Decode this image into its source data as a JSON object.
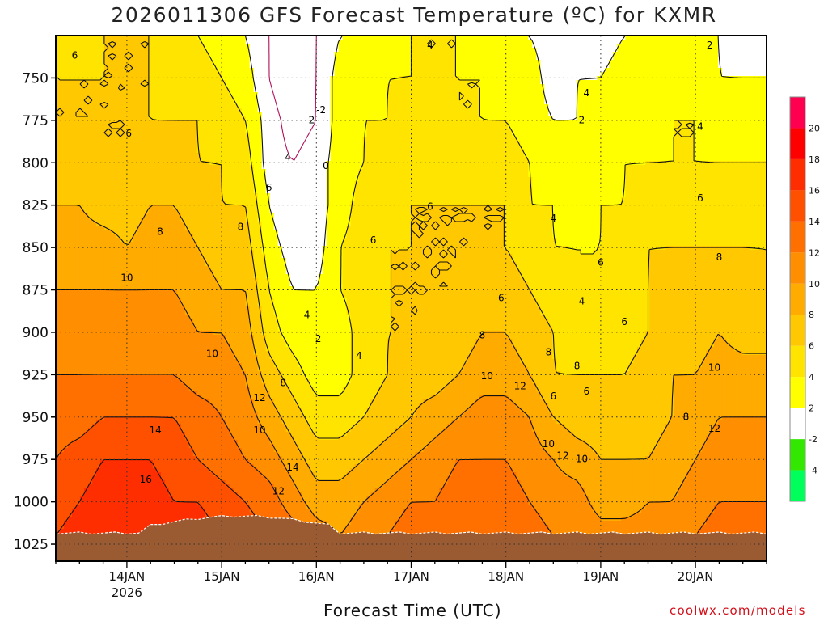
{
  "title": "2026011306 GFS Forecast Temperature (ºC) for KXMR",
  "credit": "coolwx.com/models",
  "chart_data": {
    "type": "heatmap",
    "title": "2026011306 GFS Forecast Temperature (ºC) for KXMR",
    "xlabel": "Forecast Time (UTC)",
    "ylabel": "",
    "y_axis": {
      "ticks": [
        750,
        775,
        800,
        825,
        850,
        875,
        900,
        925,
        950,
        975,
        1000,
        1025
      ],
      "inverted": true,
      "range": [
        725,
        1035
      ]
    },
    "x_axis": {
      "ticks": [
        "14JAN",
        "15JAN",
        "16JAN",
        "17JAN",
        "18JAN",
        "19JAN",
        "20JAN"
      ],
      "year_label": "2026",
      "range_days": [
        13.25,
        20.75
      ]
    },
    "grid": true,
    "colorbar": {
      "levels": [
        -4,
        -2,
        2,
        4,
        6,
        8,
        10,
        12,
        14,
        16,
        18,
        20
      ],
      "colors": [
        "#00ff5a",
        "#33e800",
        "#ffffff",
        "#ffff00",
        "#ffe400",
        "#ffc800",
        "#ffab00",
        "#ff8e00",
        "#ff7000",
        "#ff5000",
        "#ff2e00",
        "#ff0000",
        "#ff0050"
      ]
    },
    "columns_x_days": [
      13.25,
      13.5,
      13.75,
      14.0,
      14.25,
      14.5,
      14.75,
      15.0,
      15.25,
      15.5,
      15.75,
      16.0,
      16.25,
      16.5,
      16.75,
      17.0,
      17.25,
      17.5,
      17.75,
      18.0,
      18.25,
      18.5,
      18.75,
      19.0,
      19.25,
      19.5,
      19.75,
      20.0,
      20.25,
      20.5,
      20.75
    ],
    "temperature_c": {
      "levels_hpa": [
        725,
        750,
        775,
        800,
        825,
        850,
        875,
        900,
        925,
        950,
        975,
        1000,
        1020
      ],
      "rows": [
        [
          6,
          5,
          6,
          6,
          6,
          5,
          4,
          3,
          2,
          0,
          -2,
          0,
          2,
          2,
          3,
          4,
          4,
          4,
          3,
          2,
          2,
          1,
          1,
          1,
          2,
          2,
          2,
          2,
          2,
          1,
          1
        ],
        [
          6,
          6,
          6,
          6,
          6,
          5,
          5,
          4,
          3,
          0,
          -2,
          0,
          3,
          3,
          4,
          4,
          4,
          4,
          4,
          3,
          3,
          1,
          2,
          2,
          3,
          3,
          3,
          3,
          2,
          2,
          2
        ],
        [
          6,
          6,
          6,
          6,
          6,
          6,
          6,
          5,
          4,
          1,
          -1,
          0,
          3,
          4,
          4,
          5,
          5,
          4,
          4,
          4,
          3,
          2,
          2,
          3,
          3,
          3,
          4,
          4,
          3,
          3,
          3
        ],
        [
          7,
          7,
          6,
          6,
          7,
          7,
          6,
          6,
          5,
          1,
          0,
          1,
          3,
          4,
          5,
          5,
          5,
          5,
          5,
          5,
          4,
          3,
          3,
          3,
          4,
          4,
          4,
          4,
          4,
          4,
          4
        ],
        [
          8,
          8,
          7,
          7,
          8,
          8,
          7,
          6,
          6,
          2,
          0,
          1,
          3,
          5,
          5,
          6,
          6,
          6,
          6,
          6,
          4,
          4,
          3,
          4,
          4,
          5,
          5,
          5,
          5,
          5,
          5
        ],
        [
          9,
          9,
          9,
          8,
          9,
          9,
          8,
          7,
          7,
          3,
          1,
          1,
          4,
          5,
          6,
          6,
          6,
          6,
          6,
          6,
          5,
          4,
          4,
          4,
          5,
          6,
          6,
          6,
          6,
          6,
          6
        ],
        [
          10,
          10,
          10,
          10,
          10,
          10,
          9,
          8,
          8,
          4,
          2,
          2,
          4,
          5,
          6,
          6,
          6,
          6,
          7,
          7,
          6,
          5,
          4,
          4,
          5,
          6,
          7,
          7,
          7,
          7,
          6
        ],
        [
          11,
          11,
          11,
          11,
          11,
          11,
          10,
          10,
          9,
          5,
          3,
          2,
          3,
          5,
          6,
          6,
          6,
          7,
          8,
          8,
          7,
          6,
          5,
          5,
          5,
          6,
          7,
          7,
          8,
          7,
          7
        ],
        [
          12,
          12,
          12,
          12,
          12,
          12,
          11,
          11,
          10,
          7,
          5,
          3,
          3,
          5,
          6,
          7,
          7,
          8,
          9,
          9,
          8,
          6,
          6,
          6,
          6,
          7,
          8,
          8,
          9,
          9,
          9
        ],
        [
          13,
          13,
          14,
          14,
          14,
          14,
          13,
          12,
          11,
          9,
          7,
          5,
          5,
          6,
          7,
          8,
          9,
          10,
          11,
          11,
          10,
          8,
          7,
          7,
          7,
          7,
          8,
          9,
          10,
          10,
          10
        ],
        [
          14,
          15,
          16,
          16,
          16,
          15,
          14,
          13,
          12,
          11,
          9,
          7,
          7,
          8,
          9,
          10,
          11,
          12,
          12,
          12,
          11,
          10,
          9,
          8,
          8,
          8,
          9,
          10,
          11,
          11,
          11
        ],
        [
          15,
          16,
          17,
          17,
          17,
          16,
          16,
          15,
          14,
          13,
          11,
          9,
          9,
          10,
          11,
          12,
          12,
          13,
          13,
          13,
          12,
          11,
          11,
          9,
          9,
          10,
          10,
          11,
          12,
          12,
          12
        ],
        [
          16,
          17,
          18,
          18,
          18,
          17,
          17,
          16,
          15,
          14,
          13,
          11,
          10,
          11,
          12,
          13,
          13,
          14,
          14,
          14,
          13,
          12,
          12,
          11,
          11,
          11,
          11,
          12,
          13,
          13,
          13
        ]
      ]
    },
    "contour_labels": [
      {
        "x": 13.45,
        "y": 737,
        "text": "6"
      },
      {
        "x": 14.02,
        "y": 783,
        "text": "6"
      },
      {
        "x": 14.35,
        "y": 841,
        "text": "8"
      },
      {
        "x": 14.0,
        "y": 868,
        "text": "10"
      },
      {
        "x": 14.3,
        "y": 958,
        "text": "14"
      },
      {
        "x": 14.2,
        "y": 987,
        "text": "16"
      },
      {
        "x": 14.9,
        "y": 913,
        "text": "10"
      },
      {
        "x": 15.2,
        "y": 838,
        "text": "8"
      },
      {
        "x": 15.4,
        "y": 939,
        "text": "12"
      },
      {
        "x": 15.4,
        "y": 958,
        "text": "10"
      },
      {
        "x": 15.75,
        "y": 980,
        "text": "14"
      },
      {
        "x": 15.65,
        "y": 930,
        "text": "8"
      },
      {
        "x": 15.5,
        "y": 815,
        "text": "6"
      },
      {
        "x": 15.7,
        "y": 797,
        "text": "4"
      },
      {
        "x": 15.95,
        "y": 775,
        "text": "2"
      },
      {
        "x": 16.05,
        "y": 769,
        "text": "-2"
      },
      {
        "x": 16.1,
        "y": 802,
        "text": "0"
      },
      {
        "x": 15.9,
        "y": 890,
        "text": "4"
      },
      {
        "x": 16.02,
        "y": 904,
        "text": "2"
      },
      {
        "x": 15.6,
        "y": 994,
        "text": "12"
      },
      {
        "x": 16.45,
        "y": 914,
        "text": "4"
      },
      {
        "x": 16.6,
        "y": 846,
        "text": "6"
      },
      {
        "x": 17.2,
        "y": 826,
        "text": "6"
      },
      {
        "x": 17.2,
        "y": 731,
        "text": "4"
      },
      {
        "x": 17.8,
        "y": 926,
        "text": "10"
      },
      {
        "x": 17.95,
        "y": 880,
        "text": "6"
      },
      {
        "x": 17.75,
        "y": 902,
        "text": "8"
      },
      {
        "x": 18.15,
        "y": 932,
        "text": "12"
      },
      {
        "x": 18.45,
        "y": 912,
        "text": "8"
      },
      {
        "x": 18.5,
        "y": 938,
        "text": "6"
      },
      {
        "x": 18.45,
        "y": 966,
        "text": "10"
      },
      {
        "x": 18.6,
        "y": 973,
        "text": "12"
      },
      {
        "x": 18.8,
        "y": 975,
        "text": "10"
      },
      {
        "x": 18.75,
        "y": 920,
        "text": "8"
      },
      {
        "x": 18.85,
        "y": 935,
        "text": "6"
      },
      {
        "x": 18.5,
        "y": 833,
        "text": "4"
      },
      {
        "x": 18.8,
        "y": 775,
        "text": "2"
      },
      {
        "x": 18.85,
        "y": 759,
        "text": "4"
      },
      {
        "x": 18.8,
        "y": 882,
        "text": "4"
      },
      {
        "x": 19.0,
        "y": 859,
        "text": "6"
      },
      {
        "x": 19.25,
        "y": 894,
        "text": "6"
      },
      {
        "x": 19.9,
        "y": 950,
        "text": "8"
      },
      {
        "x": 20.2,
        "y": 921,
        "text": "10"
      },
      {
        "x": 20.2,
        "y": 957,
        "text": "12"
      },
      {
        "x": 20.25,
        "y": 856,
        "text": "8"
      },
      {
        "x": 20.05,
        "y": 821,
        "text": "6"
      },
      {
        "x": 20.05,
        "y": 779,
        "text": "4"
      },
      {
        "x": 20.15,
        "y": 731,
        "text": "2"
      }
    ]
  }
}
